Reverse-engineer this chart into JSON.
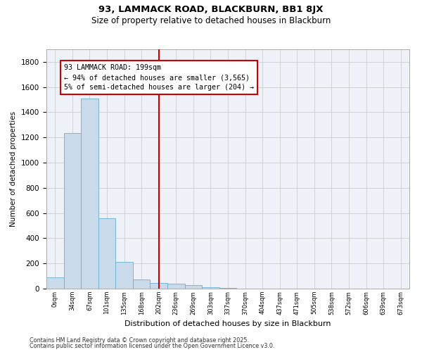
{
  "title1": "93, LAMMACK ROAD, BLACKBURN, BB1 8JX",
  "title2": "Size of property relative to detached houses in Blackburn",
  "xlabel": "Distribution of detached houses by size in Blackburn",
  "ylabel": "Number of detached properties",
  "categories": [
    "0sqm",
    "34sqm",
    "67sqm",
    "101sqm",
    "135sqm",
    "168sqm",
    "202sqm",
    "236sqm",
    "269sqm",
    "303sqm",
    "337sqm",
    "370sqm",
    "404sqm",
    "437sqm",
    "471sqm",
    "505sqm",
    "538sqm",
    "572sqm",
    "606sqm",
    "639sqm",
    "673sqm"
  ],
  "values": [
    90,
    1235,
    1510,
    560,
    215,
    70,
    45,
    38,
    28,
    10,
    5,
    2,
    1,
    0,
    0,
    0,
    0,
    0,
    0,
    0,
    0
  ],
  "bar_color": "#c9daea",
  "bar_edge_color": "#6aafd6",
  "vline_x_index": 6,
  "vline_color": "#cc0000",
  "annotation_text": "93 LAMMACK ROAD: 199sqm\n← 94% of detached houses are smaller (3,565)\n5% of semi-detached houses are larger (204) →",
  "annotation_box_color": "#cc0000",
  "ylim": [
    0,
    1900
  ],
  "yticks": [
    0,
    200,
    400,
    600,
    800,
    1000,
    1200,
    1400,
    1600,
    1800
  ],
  "grid_color": "#cccccc",
  "bg_color": "#eef2f8",
  "footer1": "Contains HM Land Registry data © Crown copyright and database right 2025.",
  "footer2": "Contains public sector information licensed under the Open Government Licence v3.0."
}
